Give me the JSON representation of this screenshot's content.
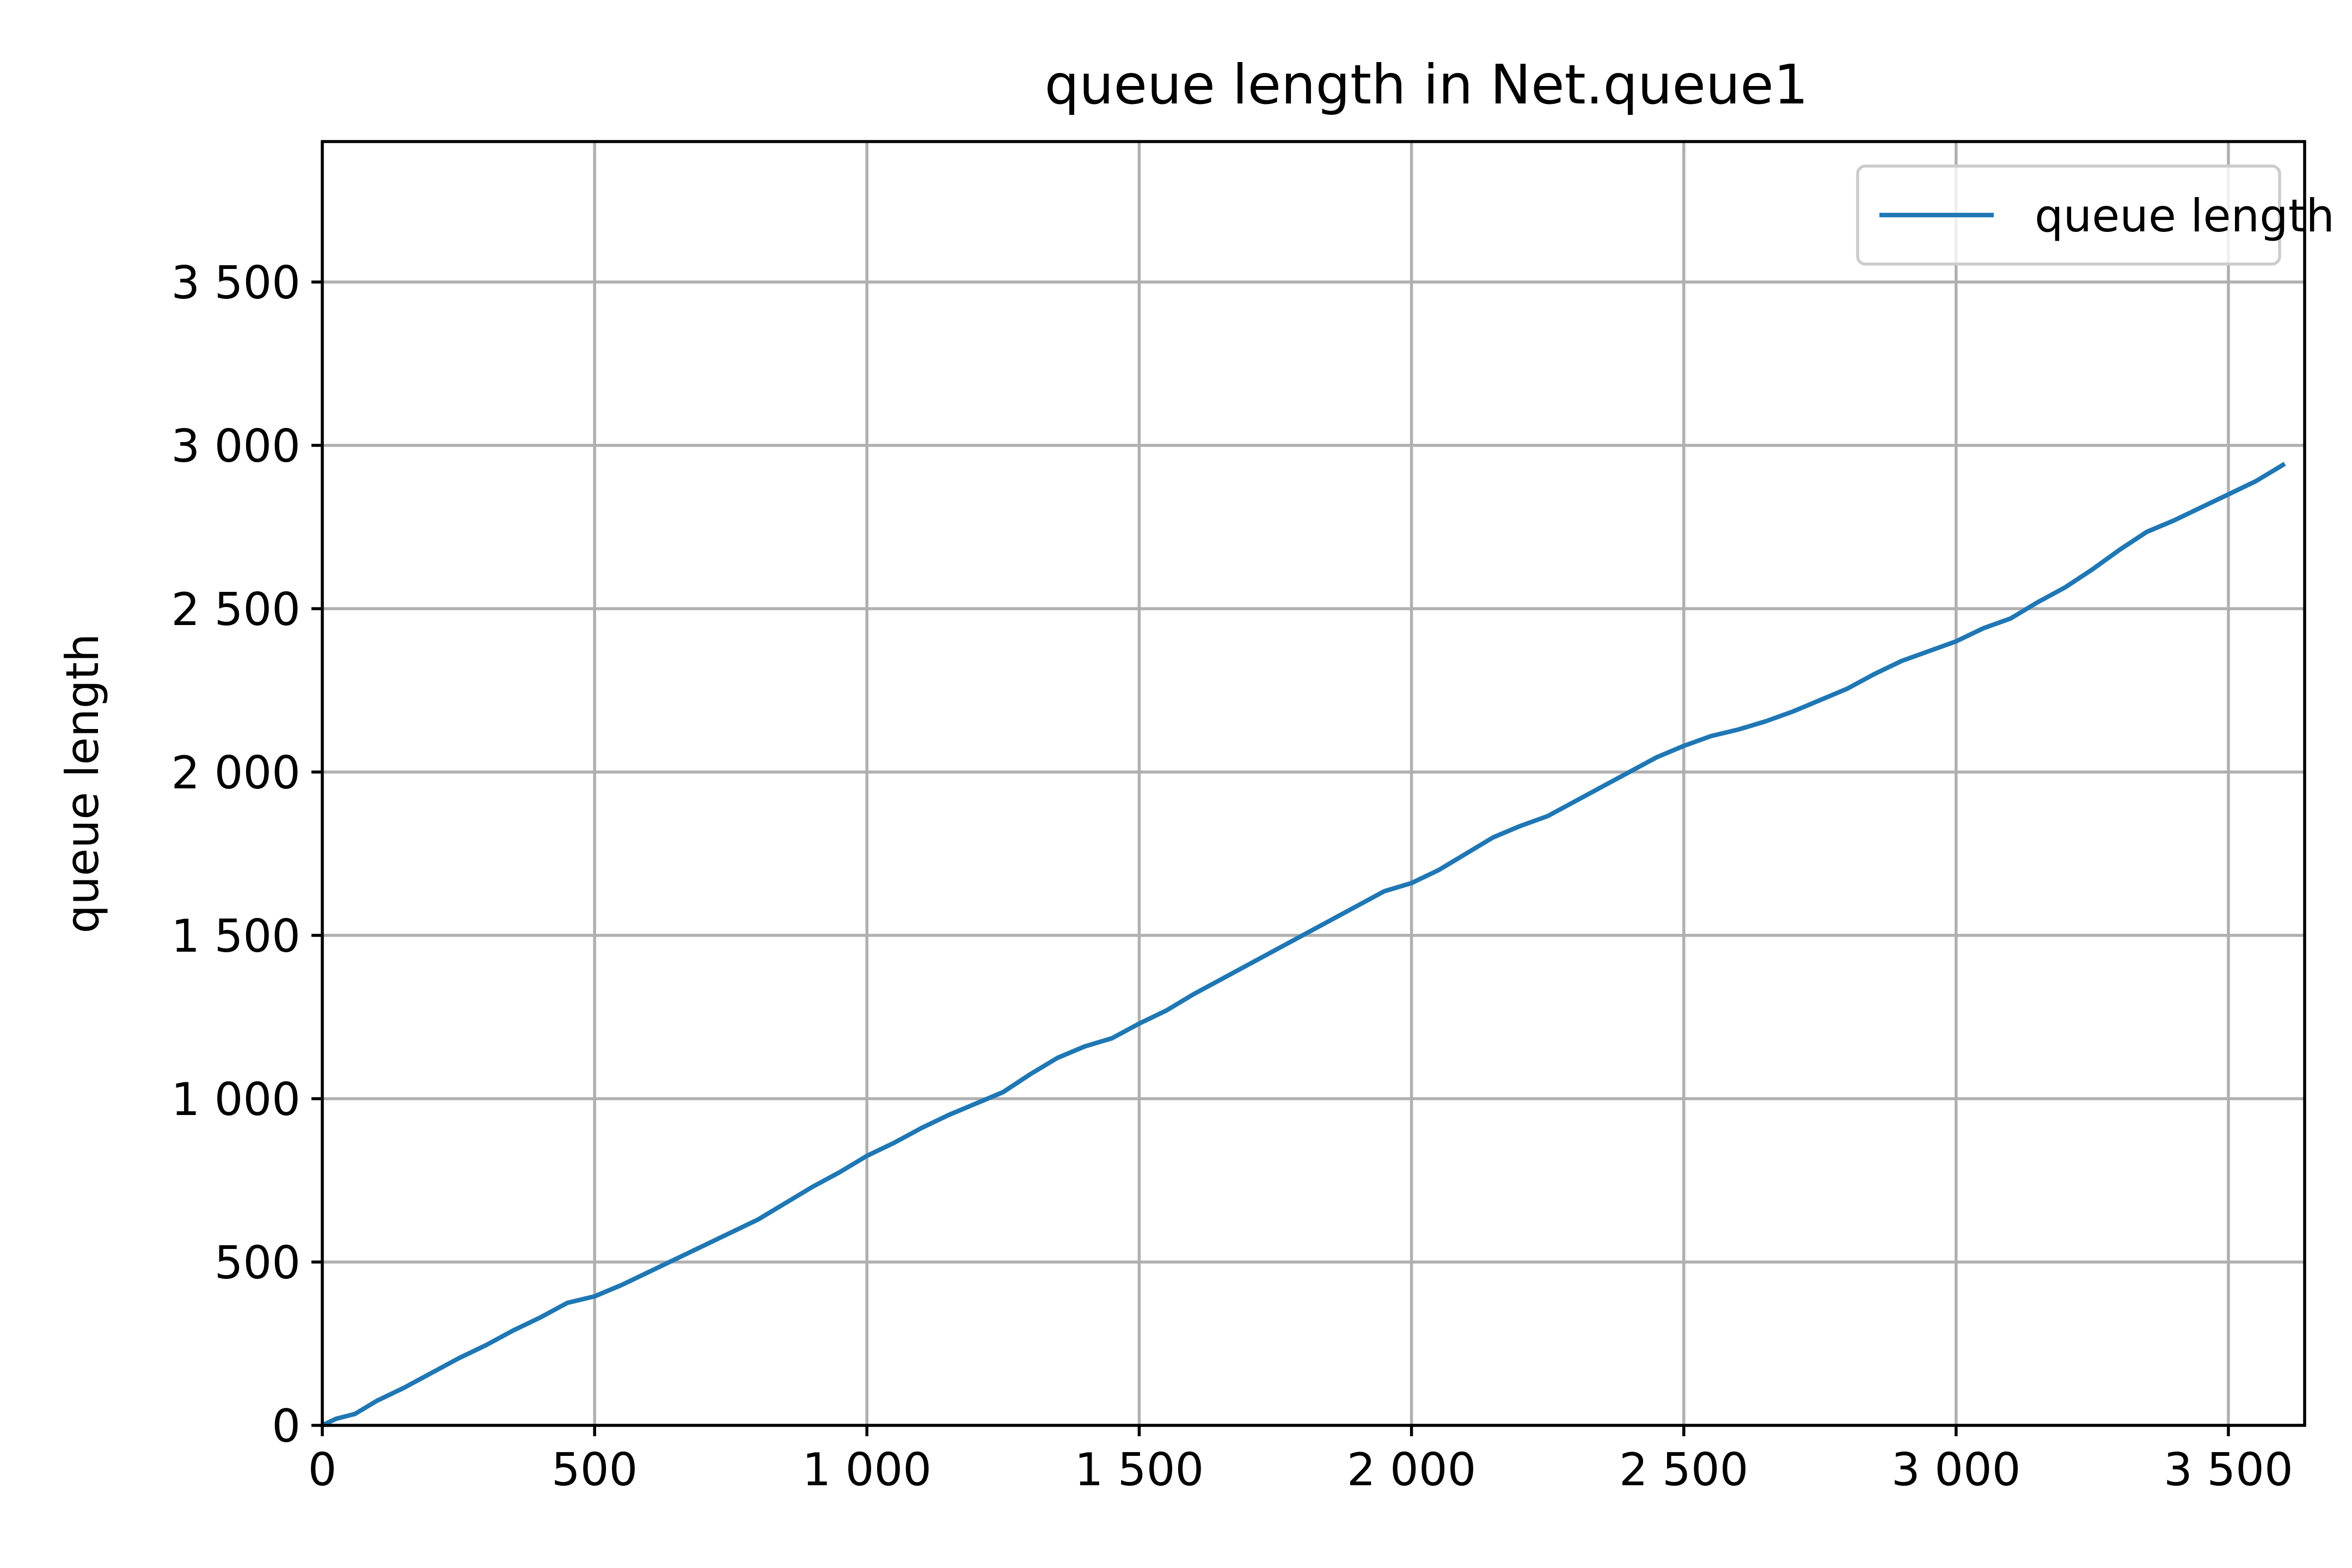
{
  "chart_data": {
    "type": "line",
    "title": "queue length in Net.queue1",
    "xlabel": "",
    "ylabel": "queue length",
    "xlim": [
      0,
      3640
    ],
    "ylim": [
      0,
      3930
    ],
    "grid": true,
    "legend_position": "top-right",
    "x_ticks": [
      {
        "value": 0,
        "label": "0"
      },
      {
        "value": 500,
        "label": "500"
      },
      {
        "value": 1000,
        "label": "1 000"
      },
      {
        "value": 1500,
        "label": "1 500"
      },
      {
        "value": 2000,
        "label": "2 000"
      },
      {
        "value": 2500,
        "label": "2 500"
      },
      {
        "value": 3000,
        "label": "3 000"
      },
      {
        "value": 3500,
        "label": "3 500"
      }
    ],
    "y_ticks": [
      {
        "value": 0,
        "label": "0"
      },
      {
        "value": 500,
        "label": "500"
      },
      {
        "value": 1000,
        "label": "1 000"
      },
      {
        "value": 1500,
        "label": "1 500"
      },
      {
        "value": 2000,
        "label": "2 000"
      },
      {
        "value": 2500,
        "label": "2 500"
      },
      {
        "value": 3000,
        "label": "3 000"
      },
      {
        "value": 3500,
        "label": "3 500"
      }
    ],
    "series": [
      {
        "name": "queue length in Net.queue1",
        "color": "#1f77b4",
        "x": [
          0,
          25,
          60,
          100,
          150,
          200,
          250,
          300,
          350,
          400,
          450,
          500,
          550,
          600,
          650,
          700,
          750,
          800,
          850,
          900,
          950,
          1000,
          1050,
          1100,
          1150,
          1200,
          1250,
          1300,
          1350,
          1400,
          1450,
          1500,
          1550,
          1600,
          1650,
          1700,
          1750,
          1800,
          1850,
          1900,
          1950,
          2000,
          2050,
          2100,
          2150,
          2200,
          2250,
          2300,
          2350,
          2400,
          2450,
          2500,
          2550,
          2600,
          2650,
          2700,
          2750,
          2800,
          2850,
          2900,
          2950,
          3000,
          3050,
          3100,
          3150,
          3200,
          3250,
          3300,
          3350,
          3400,
          3450,
          3500,
          3550,
          3580,
          3600
        ],
        "y": [
          0,
          20,
          35,
          75,
          115,
          160,
          205,
          245,
          290,
          330,
          375,
          395,
          430,
          470,
          510,
          550,
          590,
          630,
          680,
          730,
          775,
          825,
          865,
          910,
          950,
          985,
          1020,
          1075,
          1125,
          1160,
          1185,
          1230,
          1270,
          1320,
          1365,
          1410,
          1455,
          1500,
          1545,
          1590,
          1635,
          1660,
          1700,
          1750,
          1800,
          1835,
          1865,
          1910,
          1955,
          2000,
          2045,
          2080,
          2110,
          2130,
          2155,
          2185,
          2220,
          2255,
          2300,
          2340,
          2370,
          2400,
          2440,
          2470,
          2520,
          2565,
          2620,
          2680,
          2735,
          2770,
          2810,
          2850,
          2890,
          2920,
          2940
        ]
      }
    ]
  }
}
